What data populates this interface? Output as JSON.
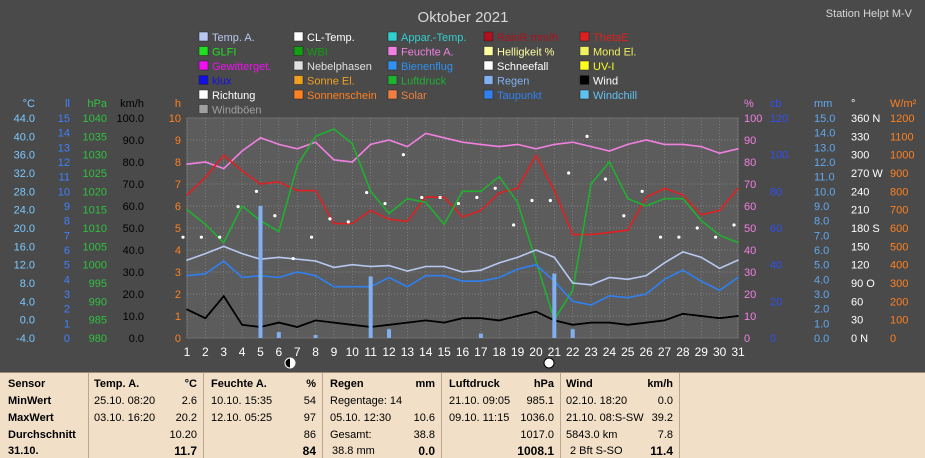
{
  "header": {
    "title": "Oktober 2021",
    "station": "Station Helpt M-V"
  },
  "legend": [
    {
      "label": "Temp. A.",
      "color": "#b8c8f0"
    },
    {
      "label": "CL-Temp.",
      "color": "#ffffff"
    },
    {
      "label": "Appar.-Temp.",
      "color": "#30d0d0"
    },
    {
      "label": "RainR mm/h",
      "color": "#b01020"
    },
    {
      "label": "ThetaE",
      "color": "#e02020"
    },
    {
      "label": "GLFI",
      "color": "#20e020"
    },
    {
      "label": "WBI",
      "color": "#10a010"
    },
    {
      "label": "Feuchte A.",
      "color": "#f080e0"
    },
    {
      "label": "Helligkeit %",
      "color": "#ffffa0"
    },
    {
      "label": "Mond El.",
      "color": "#f0f060"
    },
    {
      "label": "Gewitterget.",
      "color": "#f010f0"
    },
    {
      "label": "Nebelphasen",
      "color": "#e0e0e0"
    },
    {
      "label": "Bienenflug",
      "color": "#3090f0"
    },
    {
      "label": "Schneefall",
      "color": "#ffffff"
    },
    {
      "label": "UV-I",
      "color": "#ffff20"
    },
    {
      "label": "klux",
      "color": "#1010e0"
    },
    {
      "label": "Sonne El.",
      "color": "#f0a020"
    },
    {
      "label": "Luftdruck",
      "color": "#20b030"
    },
    {
      "label": "Regen",
      "color": "#80b0f0"
    },
    {
      "label": "Wind",
      "color": "#000000"
    },
    {
      "label": "Richtung",
      "color": "#ffffff"
    },
    {
      "label": "Sonnenschein",
      "color": "#ff8020"
    },
    {
      "label": "Solar",
      "color": "#f08040"
    },
    {
      "label": "Taupunkt",
      "color": "#3080f0"
    },
    {
      "label": "Windchill",
      "color": "#60c0f0"
    },
    {
      "label": "Windböen",
      "color": "#a0a0a0"
    }
  ],
  "axes": {
    "left": [
      {
        "unit": "°C",
        "color": "#7ac8ff",
        "ticks": [
          "44.0",
          "40.0",
          "36.0",
          "32.0",
          "28.0",
          "24.0",
          "20.0",
          "16.0",
          "12.0",
          "8.0",
          "4.0",
          "0.0",
          "-4.0"
        ]
      },
      {
        "unit": "ll",
        "color": "#4080ff",
        "ticks": [
          "15",
          "14",
          "13",
          "12",
          "11",
          "10",
          "9",
          "8",
          "7",
          "6",
          "5",
          "4",
          "3",
          "2",
          "1",
          "0"
        ]
      },
      {
        "unit": "hPa",
        "color": "#30c040",
        "ticks": [
          "1040",
          "1035",
          "1030",
          "1025",
          "1020",
          "1015",
          "1010",
          "1005",
          "1000",
          "995",
          "990",
          "985",
          "980"
        ]
      },
      {
        "unit": "km/h",
        "color": "#000000",
        "ticks": [
          "100.0",
          "90.0",
          "80.0",
          "70.0",
          "60.0",
          "50.0",
          "40.0",
          "30.0",
          "20.0",
          "10.0",
          "0.0"
        ]
      },
      {
        "unit": "h",
        "color": "#ff8020",
        "ticks": [
          "10",
          "9",
          "8",
          "7",
          "6",
          "5",
          "4",
          "3",
          "2",
          "1",
          "0"
        ]
      }
    ],
    "right": [
      {
        "unit": "%",
        "color": "#f080e0",
        "ticks": [
          "100",
          "90",
          "80",
          "70",
          "60",
          "50",
          "40",
          "30",
          "20",
          "10",
          "0"
        ]
      },
      {
        "unit": "cb",
        "color": "#3050f0",
        "ticks": [
          "120",
          "100",
          "80",
          "60",
          "40",
          "20",
          "0"
        ]
      },
      {
        "unit": "mm",
        "color": "#60a8f0",
        "ticks": [
          "15.0",
          "14.0",
          "13.0",
          "12.0",
          "11.0",
          "10.0",
          "9.0",
          "8.0",
          "7.0",
          "6.0",
          "5.0",
          "4.0",
          "3.0",
          "2.0",
          "1.0",
          "0.0"
        ]
      },
      {
        "unit": "°",
        "color": "#ffffff",
        "ticks": [
          "360 N",
          "330",
          "300",
          "270 W",
          "240",
          "210",
          "180 S",
          "150",
          "120",
          "90  O",
          "60",
          "30",
          "0   N"
        ]
      },
      {
        "unit": "W/m²",
        "color": "#ff8020",
        "ticks": [
          "1200",
          "1100",
          "1000",
          "900",
          "800",
          "700",
          "600",
          "500",
          "400",
          "300",
          "200",
          "100",
          "0"
        ]
      }
    ]
  },
  "chart_data": {
    "type": "line",
    "x": [
      1,
      2,
      3,
      4,
      5,
      6,
      7,
      8,
      9,
      10,
      11,
      12,
      13,
      14,
      15,
      16,
      17,
      18,
      19,
      20,
      21,
      22,
      23,
      24,
      25,
      26,
      27,
      28,
      29,
      30,
      31
    ],
    "x_tick_labels": [
      "1",
      "2",
      "3",
      "4",
      "5",
      "6",
      "7",
      "8",
      "9",
      "10",
      "11",
      "12",
      "13",
      "14",
      "15",
      "16",
      "17",
      "18",
      "19",
      "20",
      "21",
      "22",
      "23",
      "24",
      "25",
      "26",
      "27",
      "28",
      "29",
      "30",
      "31"
    ],
    "series": [
      {
        "name": "Feuchte A.",
        "axis": "%",
        "color": "#f080e0",
        "values": [
          79,
          80,
          77,
          85,
          91,
          88,
          86,
          89,
          81,
          80,
          88,
          90,
          87,
          93,
          91,
          89,
          88,
          87,
          88,
          86,
          88,
          89,
          87,
          85,
          88,
          90,
          88,
          88,
          87,
          84,
          86
        ]
      },
      {
        "name": "ThetaE",
        "axis": "%",
        "color": "#e02020",
        "values": [
          65,
          73,
          83,
          76,
          70,
          71,
          67,
          67,
          52,
          52,
          58,
          54,
          53,
          64,
          64,
          55,
          58,
          66,
          68,
          83,
          67,
          47,
          47,
          48,
          49,
          64,
          68,
          65,
          56,
          58,
          68
        ]
      },
      {
        "name": "Luftdruck",
        "axis": "hPa",
        "color": "#20b030",
        "values": [
          1015,
          1011,
          1006,
          1016,
          1012,
          1009,
          1027,
          1035,
          1037,
          1033,
          1020,
          1014,
          1018,
          1017,
          1011,
          1020,
          1020,
          1024,
          1017,
          1001,
          985,
          993,
          1022,
          1028,
          1018,
          1016,
          1018,
          1018,
          1012,
          1008,
          1006
        ]
      },
      {
        "name": "Temp. A.",
        "axis": "°C",
        "color": "#b8c8f0",
        "values": [
          13.0,
          14.4,
          16.0,
          14.4,
          13.2,
          13.6,
          13.2,
          12.8,
          11.4,
          12.0,
          11.6,
          11.8,
          10.6,
          11.6,
          11.6,
          10.4,
          10.8,
          12.4,
          13.6,
          15.2,
          13.6,
          8.0,
          7.6,
          9.2,
          8.8,
          9.6,
          12.4,
          14.8,
          13.6,
          11.2,
          13.0
        ]
      },
      {
        "name": "Taupunkt",
        "axis": "°C",
        "color": "#3080f0",
        "values": [
          9.6,
          10.0,
          12.8,
          9.2,
          9.6,
          9.2,
          10.4,
          9.6,
          7.2,
          7.2,
          7.2,
          9.2,
          7.2,
          9.6,
          9.6,
          8.4,
          8.4,
          9.2,
          11.0,
          12.0,
          8.4,
          4.0,
          3.2,
          5.2,
          4.8,
          5.6,
          8.8,
          10.8,
          8.4,
          6.4,
          9.2
        ]
      },
      {
        "name": "Wind",
        "axis": "km/h",
        "color": "#000000",
        "values": [
          13,
          9,
          19,
          6,
          5,
          7,
          5,
          8,
          7,
          6,
          5,
          6,
          7,
          8,
          7,
          9,
          9,
          8,
          10,
          12,
          8,
          6,
          7,
          7,
          6,
          7,
          8,
          11,
          10,
          9,
          10
        ]
      },
      {
        "name": "Regen",
        "axis": "mm",
        "color": "#80b0f0",
        "bar": true,
        "values": [
          0,
          0,
          0,
          0,
          9.0,
          0.4,
          0,
          0.2,
          0,
          0,
          4.2,
          0.6,
          0,
          0,
          0,
          0,
          0.3,
          0,
          0,
          0,
          4.4,
          0.6,
          0,
          0,
          0,
          0,
          0,
          0,
          0,
          0,
          0
        ]
      },
      {
        "name": "Richtung",
        "axis": "°",
        "color": "#ffffff",
        "markers": true,
        "values": [
          165,
          165,
          165,
          215,
          240,
          200,
          130,
          165,
          195,
          190,
          238,
          220,
          300,
          230,
          230,
          220,
          230,
          245,
          185,
          225,
          225,
          270,
          330,
          260,
          200,
          240,
          165,
          165,
          180,
          165,
          185
        ]
      }
    ],
    "grid": true
  },
  "table": {
    "rows": [
      "Sensor",
      "MinWert",
      "MaxWert",
      "Durchschnitt",
      "31.10."
    ],
    "temp": {
      "header": "Temp. A.",
      "unit": "°C",
      "min_date": "25.10.  08:20",
      "min_val": "2.6",
      "max_date": "03.10.  16:20",
      "max_val": "20.2",
      "avg": "10.20",
      "today": "11.7"
    },
    "humidity": {
      "header": "Feuchte A.",
      "unit": "%",
      "min_date": "10.10.  15:35",
      "min_val": "54",
      "max_date": "12.10.  05:25",
      "max_val": "97",
      "avg": "86",
      "today": "84"
    },
    "rain": {
      "header": "Regen",
      "unit": "mm",
      "r1": "Regentage: 14",
      "r2_label": "05.10.  12:30",
      "r2_val": "10.6",
      "r3_label": "Gesamt:",
      "r3_val": "38.8",
      "r4_label": "38.8 mm",
      "r4_val": "0.0"
    },
    "pressure": {
      "header": "Luftdruck",
      "unit": "hPa",
      "min_date": "21.10.  09:05",
      "min_val": "985.1",
      "max_date": "09.10.  11:15",
      "max_val": "1036.0",
      "avg": "1017.0",
      "today": "1008.1"
    },
    "wind": {
      "header": "Wind",
      "unit": "km/h",
      "min_date": "02.10.  18:20",
      "min_val": "0.0",
      "max_date": "21.10.  08:S-SW",
      "max_val": "39.2",
      "avg_label": "5843.0 km",
      "avg": "7.8",
      "today_label": "2 Bft S-SO",
      "today": "11.4"
    }
  }
}
